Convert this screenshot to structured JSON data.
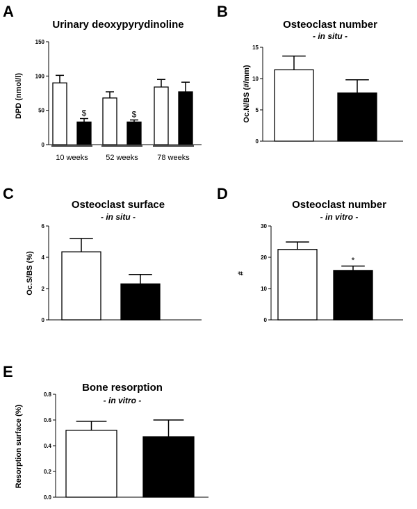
{
  "chart_data": [
    {
      "panel": "A",
      "type": "bar",
      "title": "Urinary deoxypyrydinoline",
      "subtitle": "",
      "xlabel": "",
      "ylabel": "DPD (nmol/l)",
      "ylim": [
        0,
        150
      ],
      "yticks": [
        0,
        50,
        100,
        150
      ],
      "categories": [
        "10 weeks",
        "52 weeks",
        "78 weeks"
      ],
      "series": [
        {
          "fill": "#ffffff",
          "values": [
            90,
            68,
            84
          ],
          "errors": [
            11,
            9,
            11
          ],
          "marks": [
            "",
            "",
            ""
          ]
        },
        {
          "fill": "#000000",
          "values": [
            33,
            33,
            77
          ],
          "errors": [
            5,
            3,
            14
          ],
          "marks": [
            "$",
            "$",
            ""
          ]
        }
      ]
    },
    {
      "panel": "B",
      "type": "bar",
      "title": "Osteoclast number",
      "subtitle": "- in situ -",
      "xlabel": "",
      "ylabel": "Oc.N/BS (#/mm)",
      "ylim": [
        0,
        15
      ],
      "yticks": [
        0,
        5,
        10,
        15
      ],
      "categories": [
        ""
      ],
      "series": [
        {
          "fill": "#ffffff",
          "values": [
            11.4
          ],
          "errors": [
            2.2
          ],
          "marks": [
            ""
          ]
        },
        {
          "fill": "#000000",
          "values": [
            7.7
          ],
          "errors": [
            2.1
          ],
          "marks": [
            ""
          ]
        }
      ]
    },
    {
      "panel": "C",
      "type": "bar",
      "title": "Osteoclast surface",
      "subtitle": "- in situ -",
      "xlabel": "",
      "ylabel": "Oc.S/BS (%)",
      "ylim": [
        0,
        6
      ],
      "yticks": [
        0,
        2,
        4,
        6
      ],
      "categories": [
        ""
      ],
      "series": [
        {
          "fill": "#ffffff",
          "values": [
            4.35
          ],
          "errors": [
            0.85
          ],
          "marks": [
            ""
          ]
        },
        {
          "fill": "#000000",
          "values": [
            2.3
          ],
          "errors": [
            0.6
          ],
          "marks": [
            ""
          ]
        }
      ]
    },
    {
      "panel": "D",
      "type": "bar",
      "title": "Osteoclast number",
      "subtitle": "- in vitro -",
      "xlabel": "",
      "ylabel": "#",
      "ylim": [
        0,
        30
      ],
      "yticks": [
        0,
        10,
        20,
        30
      ],
      "categories": [
        ""
      ],
      "series": [
        {
          "fill": "#ffffff",
          "values": [
            22.5
          ],
          "errors": [
            2.4
          ],
          "marks": [
            ""
          ]
        },
        {
          "fill": "#000000",
          "values": [
            15.8
          ],
          "errors": [
            1.4
          ],
          "marks": [
            "*"
          ]
        }
      ]
    },
    {
      "panel": "E",
      "type": "bar",
      "title": "Bone resorption",
      "subtitle": "- in vitro -",
      "xlabel": "",
      "ylabel": "Resorption surface (%)",
      "ylim": [
        0,
        0.8
      ],
      "yticks": [
        0.0,
        0.2,
        0.4,
        0.6,
        0.8
      ],
      "ytick_decimals": 1,
      "categories": [
        ""
      ],
      "series": [
        {
          "fill": "#ffffff",
          "values": [
            0.52
          ],
          "errors": [
            0.07
          ],
          "marks": [
            ""
          ]
        },
        {
          "fill": "#000000",
          "values": [
            0.47
          ],
          "errors": [
            0.13
          ],
          "marks": [
            ""
          ]
        }
      ]
    }
  ]
}
